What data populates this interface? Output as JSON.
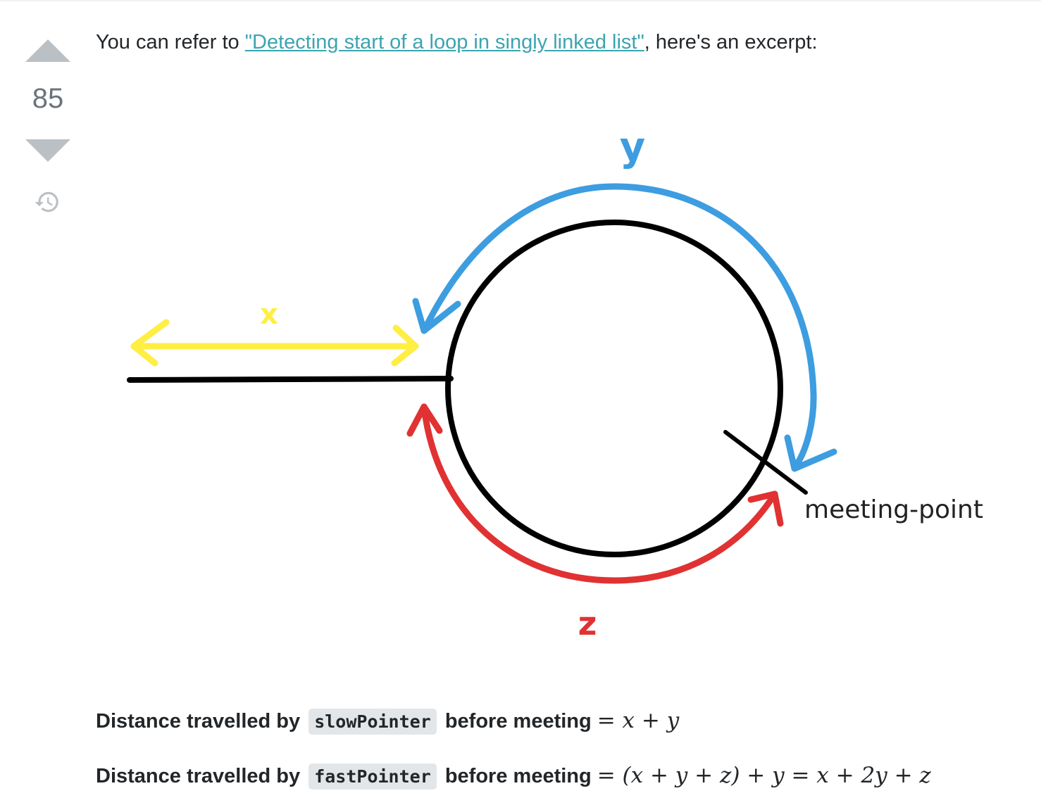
{
  "vote": {
    "score": "85",
    "upvote_icon": "arrow-up-icon",
    "downvote_icon": "arrow-down-icon",
    "history_icon": "history-icon"
  },
  "post": {
    "intro_before": "You can refer to ",
    "link_text": "\"Detecting start of a loop in singly linked list\"",
    "intro_after": ", here's an excerpt:",
    "link_color": "#3ca4b0"
  },
  "diagram": {
    "label_x": "x",
    "label_y": "y",
    "label_z": "z",
    "meeting_label": "meeting-point",
    "colors": {
      "x_arrow": "#ffee44",
      "y_arrow": "#3d9de0",
      "z_arrow": "#e03232",
      "structure": "#000000"
    }
  },
  "equations": [
    {
      "prefix": "Distance travelled by",
      "code": "slowPointer",
      "suffix": "before meeting",
      "math": "= x + y"
    },
    {
      "prefix": "Distance travelled by",
      "code": "fastPointer",
      "suffix": "before meeting",
      "math": "= (x + y + z) + y = x + 2y + z"
    }
  ]
}
